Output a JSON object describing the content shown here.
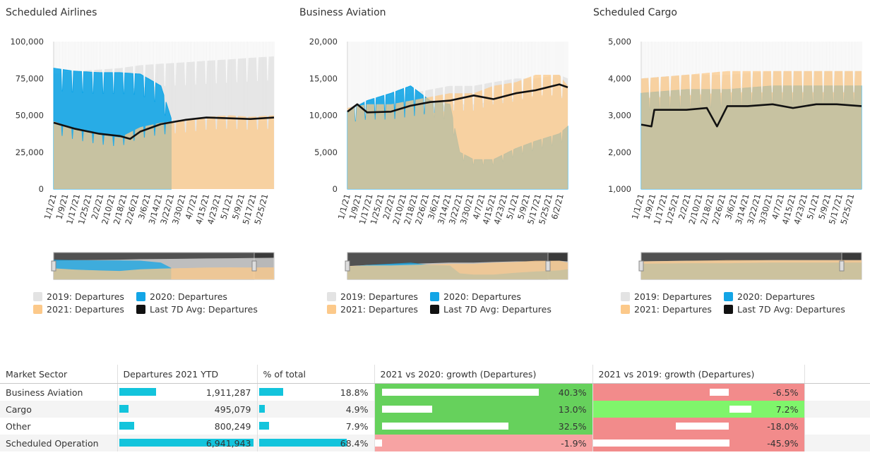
{
  "colors": {
    "y2019": "#e3e3e3",
    "y2020": "#13a5e6",
    "y2021": "#fcc98a",
    "avg7d": "#111111",
    "table_bar": "#13c4dc",
    "growth_positive": "#66d15c",
    "growth_positive_light": "#7ff56b",
    "growth_negative": "#f28b8b",
    "growth_negative_light": "#f7a3a3"
  },
  "legend": {
    "y2019": "2019: Departures",
    "y2020": "2020: Departures",
    "y2021": "2021: Departures",
    "avg7d": "Last 7D Avg: Departures"
  },
  "chart_data": [
    {
      "type": "area",
      "title": "Scheduled Airlines",
      "ylim": [
        0,
        100000
      ],
      "y_ticks": [
        "0",
        "25,000",
        "50,000",
        "75,000",
        "100,000"
      ],
      "x_ticks": [
        "1/1/21",
        "1/9/21",
        "1/17/21",
        "1/25/21",
        "2/2/21",
        "2/10/21",
        "2/18/21",
        "2/26/21",
        "3/6/21",
        "3/14/21",
        "3/22/21",
        "3/30/21",
        "4/7/21",
        "4/15/21",
        "4/23/21",
        "5/1/21",
        "5/9/21",
        "5/17/21",
        "5/25/21"
      ],
      "x_range": [
        "1/1/21",
        "5/31/21"
      ],
      "grid": true,
      "legend_position": "bottom",
      "series": [
        {
          "name": "2019: Departures",
          "x": [
            "1/1/21",
            "1/15/21",
            "2/1/21",
            "2/15/21",
            "3/1/21",
            "3/15/21",
            "4/1/21",
            "4/15/21",
            "5/1/21",
            "5/15/21",
            "5/31/21"
          ],
          "values": [
            78000,
            80000,
            81000,
            82000,
            84000,
            85000,
            86000,
            87000,
            88000,
            89000,
            90000
          ]
        },
        {
          "name": "2020: Departures",
          "x": [
            "1/1/21",
            "1/15/21",
            "2/1/21",
            "2/15/21",
            "3/1/21",
            "3/15/21",
            "3/22/21"
          ],
          "values": [
            82000,
            80000,
            79000,
            79000,
            78000,
            70000,
            48000
          ]
        },
        {
          "name": "2021: Departures",
          "x": [
            "1/1/21",
            "1/15/21",
            "2/1/21",
            "2/15/21",
            "3/1/21",
            "3/15/21",
            "4/1/21",
            "4/15/21",
            "5/1/21",
            "5/15/21",
            "5/31/21"
          ],
          "values": [
            46000,
            41000,
            37000,
            35000,
            42000,
            45000,
            47000,
            49000,
            50000,
            49000,
            50000
          ]
        },
        {
          "name": "Last 7D Avg: Departures",
          "x": [
            "1/1/21",
            "1/15/21",
            "2/1/21",
            "2/15/21",
            "2/22/21",
            "3/1/21",
            "3/15/21",
            "4/1/21",
            "4/15/21",
            "5/1/21",
            "5/15/21",
            "5/31/21"
          ],
          "values": [
            45000,
            41000,
            37500,
            36000,
            34000,
            39000,
            44000,
            47000,
            48500,
            48000,
            47500,
            48500
          ]
        }
      ]
    },
    {
      "type": "area",
      "title": "Business Aviation",
      "ylim": [
        0,
        20000
      ],
      "y_ticks": [
        "0",
        "5,000",
        "10,000",
        "15,000",
        "20,000"
      ],
      "x_ticks": [
        "1/1/21",
        "1/9/21",
        "1/17/21",
        "1/25/21",
        "2/2/21",
        "2/10/21",
        "2/18/21",
        "2/26/21",
        "3/6/21",
        "3/14/21",
        "3/22/21",
        "3/30/21",
        "4/7/21",
        "4/15/21",
        "4/23/21",
        "5/1/21",
        "5/9/21",
        "5/17/21",
        "5/25/21",
        "6/2/21"
      ],
      "x_range": [
        "1/1/21",
        "6/7/21"
      ],
      "grid": true,
      "legend_position": "bottom",
      "series": [
        {
          "name": "2019: Departures",
          "x": [
            "1/1/21",
            "1/15/21",
            "2/1/21",
            "2/15/21",
            "3/1/21",
            "3/15/21",
            "4/1/21",
            "4/15/21",
            "5/1/21",
            "5/15/21",
            "6/1/21",
            "6/7/21"
          ],
          "values": [
            11000,
            12000,
            12500,
            13000,
            13500,
            14000,
            14000,
            14500,
            15000,
            15000,
            15500,
            15000
          ]
        },
        {
          "name": "2020: Departures",
          "x": [
            "1/1/21",
            "1/15/21",
            "2/1/21",
            "2/15/21",
            "3/1/21",
            "3/15/21",
            "3/22/21",
            "4/1/21",
            "4/15/21",
            "5/1/21",
            "5/15/21",
            "6/1/21",
            "6/7/21"
          ],
          "values": [
            10500,
            12000,
            13000,
            14000,
            12000,
            11500,
            5000,
            4000,
            4000,
            5500,
            6500,
            7500,
            8500
          ]
        },
        {
          "name": "2021: Departures",
          "x": [
            "1/1/21",
            "1/15/21",
            "2/1/21",
            "2/15/21",
            "3/1/21",
            "3/15/21",
            "4/1/21",
            "4/15/21",
            "5/1/21",
            "5/15/21",
            "6/1/21",
            "6/7/21"
          ],
          "values": [
            11000,
            11500,
            11500,
            12000,
            12500,
            13000,
            13000,
            14000,
            14500,
            15500,
            15500,
            14000
          ]
        },
        {
          "name": "Last 7D Avg: Departures",
          "x": [
            "1/1/21",
            "1/8/21",
            "1/15/21",
            "2/1/21",
            "2/15/21",
            "3/1/21",
            "3/15/21",
            "4/1/21",
            "4/15/21",
            "5/1/21",
            "5/15/21",
            "6/1/21",
            "6/7/21"
          ],
          "values": [
            10500,
            11500,
            10400,
            10500,
            11300,
            11800,
            12000,
            12700,
            12200,
            13000,
            13400,
            14200,
            13800
          ]
        }
      ]
    },
    {
      "type": "area",
      "title": "Scheduled Cargo",
      "ylim": [
        1000,
        5000
      ],
      "y_ticks": [
        "1,000",
        "2,000",
        "3,000",
        "4,000",
        "5,000"
      ],
      "x_ticks": [
        "1/1/21",
        "1/9/21",
        "1/17/21",
        "1/25/21",
        "2/2/21",
        "2/10/21",
        "2/18/21",
        "2/26/21",
        "3/6/21",
        "3/14/21",
        "3/22/21",
        "3/30/21",
        "4/7/21",
        "4/15/21",
        "4/23/21",
        "5/1/21",
        "5/9/21",
        "5/17/21",
        "5/25/21"
      ],
      "x_range": [
        "1/1/21",
        "6/1/21"
      ],
      "grid": true,
      "legend_position": "bottom",
      "series": [
        {
          "name": "2019: Departures",
          "x": [
            "1/1/21",
            "2/1/21",
            "3/1/21",
            "4/1/21",
            "5/1/21",
            "6/1/21"
          ],
          "values": [
            4000,
            4100,
            4100,
            4200,
            4200,
            4200
          ]
        },
        {
          "name": "2020: Departures",
          "x": [
            "1/1/21",
            "2/1/21",
            "3/1/21",
            "4/1/21",
            "5/1/21",
            "6/1/21"
          ],
          "values": [
            3600,
            3700,
            3700,
            3800,
            3800,
            3800
          ]
        },
        {
          "name": "2021: Departures",
          "x": [
            "1/1/21",
            "2/1/21",
            "3/1/21",
            "4/1/21",
            "5/1/21",
            "6/1/21"
          ],
          "values": [
            4000,
            4100,
            4200,
            4200,
            4200,
            4200
          ]
        },
        {
          "name": "Last 7D Avg: Departures",
          "x": [
            "1/1/21",
            "1/8/21",
            "1/10/21",
            "2/1/21",
            "2/15/21",
            "2/22/21",
            "3/1/21",
            "3/15/21",
            "4/1/21",
            "4/15/21",
            "5/1/21",
            "5/15/21",
            "6/1/21"
          ],
          "values": [
            2750,
            2700,
            3150,
            3150,
            3200,
            2700,
            3250,
            3250,
            3300,
            3200,
            3300,
            3300,
            3250
          ]
        }
      ]
    }
  ],
  "table": {
    "headers": [
      "Market Sector",
      "Departures 2021 YTD",
      "% of total",
      "2021 vs 2020: growth (Departures)",
      "2021 vs 2019: growth (Departures)"
    ],
    "rows": [
      {
        "sector": "Business Aviation",
        "ytd": "1,911,287",
        "ytd_value": 1911287,
        "pct": "18.8%",
        "pct_value": 18.8,
        "g2020": "40.3%",
        "g2020_value": 40.3,
        "g2019": "-6.5%",
        "g2019_value": -6.5
      },
      {
        "sector": "Cargo",
        "ytd": "495,079",
        "ytd_value": 495079,
        "pct": "4.9%",
        "pct_value": 4.9,
        "g2020": "13.0%",
        "g2020_value": 13.0,
        "g2019": "7.2%",
        "g2019_value": 7.2
      },
      {
        "sector": "Other",
        "ytd": "800,249",
        "ytd_value": 800249,
        "pct": "7.9%",
        "pct_value": 7.9,
        "g2020": "32.5%",
        "g2020_value": 32.5,
        "g2019": "-18.0%",
        "g2019_value": -18.0
      },
      {
        "sector": "Scheduled Operation",
        "ytd": "6,941,943",
        "ytd_value": 6941943,
        "pct": "68.4%",
        "pct_value": 68.4,
        "g2020": "-1.9%",
        "g2020_value": -1.9,
        "g2019": "-45.9%",
        "g2019_value": -45.9
      }
    ]
  }
}
